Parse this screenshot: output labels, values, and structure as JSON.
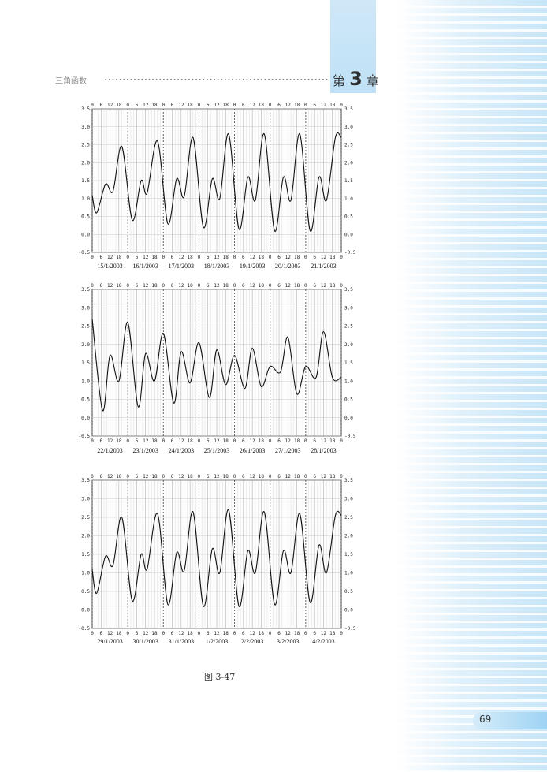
{
  "header": {
    "running_title": "三角函数",
    "chapter_prefix": "第",
    "chapter_number": "3",
    "chapter_suffix": "章",
    "accent_color": "#bfe0f6"
  },
  "figure": {
    "caption": "图 3-47"
  },
  "page": {
    "number": "69"
  },
  "chart_data": [
    {
      "type": "line",
      "title": "",
      "xlabel": "",
      "ylabel": "",
      "ylim": [
        -0.5,
        3.5
      ],
      "y_ticks": [
        "-0.5",
        "0.0",
        "0.5",
        "1.0",
        "1.5",
        "2.0",
        "2.5",
        "3.0",
        "3.5"
      ],
      "hour_ticks": [
        "0",
        "6",
        "12",
        "18"
      ],
      "grid": true,
      "categories": [
        "15/1/2003",
        "16/1/2003",
        "17/1/2003",
        "18/1/2003",
        "19/1/2003",
        "20/1/2003",
        "21/1/2003"
      ],
      "series": [
        {
          "x": [
            0,
            3,
            9,
            14,
            20,
            27,
            33,
            37,
            44,
            51,
            57,
            62,
            68,
            75,
            81,
            86,
            92,
            99,
            105,
            110,
            116,
            123,
            129,
            134,
            140,
            147,
            153,
            158,
            164,
            168
          ],
          "values": [
            1.1,
            0.6,
            1.4,
            1.2,
            2.45,
            0.4,
            1.5,
            1.15,
            2.6,
            0.3,
            1.55,
            1.05,
            2.7,
            0.2,
            1.55,
            1.0,
            2.8,
            0.15,
            1.6,
            0.95,
            2.8,
            0.1,
            1.6,
            0.95,
            2.8,
            0.1,
            1.6,
            0.95,
            2.7,
            2.7
          ]
        }
      ]
    },
    {
      "type": "line",
      "title": "",
      "xlabel": "",
      "ylabel": "",
      "ylim": [
        -0.5,
        3.5
      ],
      "y_ticks": [
        "-0.5",
        "0.0",
        "0.5",
        "1.0",
        "1.5",
        "2.0",
        "2.5",
        "3.0",
        "3.5"
      ],
      "hour_ticks": [
        "0",
        "6",
        "12",
        "18"
      ],
      "grid": true,
      "categories": [
        "22/1/2003",
        "23/1/2003",
        "24/1/2003",
        "25/1/2003",
        "26/1/2003",
        "27/1/2003",
        "28/1/2003"
      ],
      "series": [
        {
          "x": [
            0,
            7,
            12,
            18,
            24,
            31,
            36,
            42,
            48,
            55,
            60,
            66,
            72,
            79,
            84,
            90,
            96,
            103,
            108,
            114,
            120,
            127,
            132,
            138,
            144,
            151,
            156,
            162,
            168
          ],
          "values": [
            2.7,
            0.2,
            1.7,
            1.0,
            2.6,
            0.3,
            1.75,
            1.0,
            2.3,
            0.4,
            1.8,
            0.95,
            2.05,
            0.55,
            1.85,
            0.9,
            1.7,
            0.8,
            1.9,
            0.85,
            1.4,
            1.25,
            2.2,
            0.65,
            1.4,
            1.1,
            2.35,
            1.1,
            1.1
          ]
        }
      ]
    },
    {
      "type": "line",
      "title": "",
      "xlabel": "",
      "ylabel": "",
      "ylim": [
        -0.5,
        3.5
      ],
      "y_ticks": [
        "-0.5",
        "0.0",
        "0.5",
        "1.0",
        "1.5",
        "2.0",
        "2.5",
        "3.0",
        "3.5"
      ],
      "hour_ticks": [
        "0",
        "6",
        "12",
        "18"
      ],
      "grid": true,
      "categories": [
        "29/1/2003",
        "30/1/2003",
        "31/1/2003",
        "1/2/2003",
        "2/2/2003",
        "3/2/2003",
        "4/2/2003"
      ],
      "series": [
        {
          "x": [
            0,
            3,
            9,
            14,
            20,
            27,
            33,
            37,
            44,
            51,
            57,
            62,
            68,
            75,
            81,
            86,
            92,
            99,
            105,
            110,
            116,
            123,
            129,
            134,
            140,
            147,
            153,
            158,
            164,
            168
          ],
          "values": [
            1.1,
            0.45,
            1.45,
            1.2,
            2.5,
            0.25,
            1.5,
            1.1,
            2.6,
            0.15,
            1.55,
            1.05,
            2.65,
            0.1,
            1.65,
            1.0,
            2.7,
            0.1,
            1.6,
            1.0,
            2.65,
            0.15,
            1.6,
            1.0,
            2.6,
            0.2,
            1.75,
            1.0,
            2.55,
            2.55
          ]
        }
      ]
    }
  ]
}
